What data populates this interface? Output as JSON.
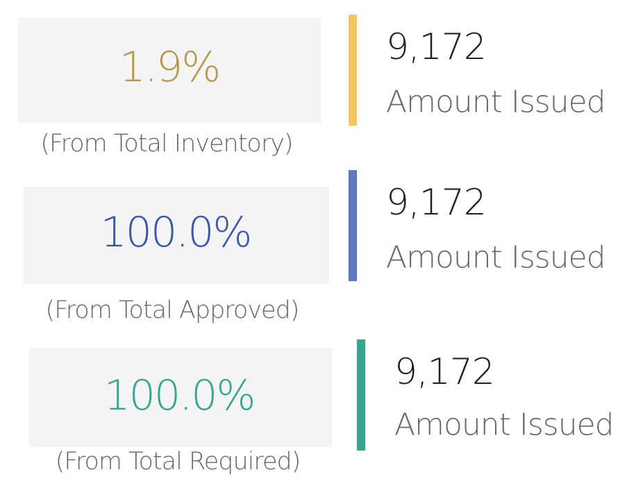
{
  "cards": [
    {
      "percent": "1.9%",
      "note": "(From Total Inventory)",
      "value": "9,172",
      "label": "Amount Issued",
      "percent_color": "#b8964e",
      "bar_color": "#f2c462"
    },
    {
      "percent": "100.0%",
      "note": "(From Total Approved)",
      "value": "9,172",
      "label": "Amount Issued",
      "percent_color": "#3a56a8",
      "bar_color": "#5b78c0"
    },
    {
      "percent": "100.0%",
      "note": "(From Total Required)",
      "value": "9,172",
      "label": "Amount Issued",
      "percent_color": "#35a58c",
      "bar_color": "#35a58c"
    }
  ]
}
